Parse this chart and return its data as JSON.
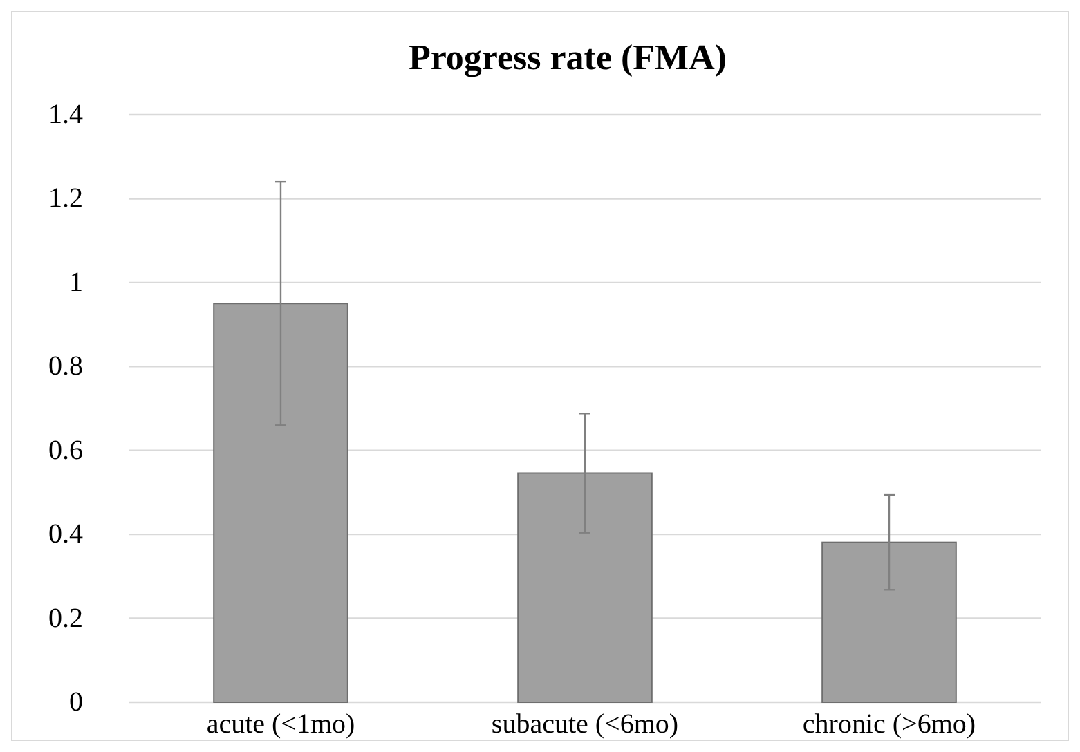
{
  "chart_data": {
    "type": "bar",
    "title": "Progress rate (FMA)",
    "categories": [
      "acute (<1mo)",
      "subacute (<6mo)",
      "chronic (>6mo)"
    ],
    "values": [
      0.95,
      0.546,
      0.381
    ],
    "errors": [
      0.29,
      0.142,
      0.113
    ],
    "color": "#a0a0a0",
    "ylim": [
      0,
      1.4
    ],
    "yticks": [
      0,
      0.2,
      0.4,
      0.6,
      0.8,
      1,
      1.2,
      1.4
    ],
    "grid": "y"
  }
}
